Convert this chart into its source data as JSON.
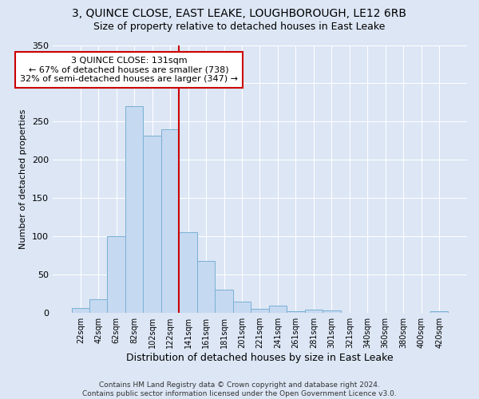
{
  "title": "3, QUINCE CLOSE, EAST LEAKE, LOUGHBOROUGH, LE12 6RB",
  "subtitle": "Size of property relative to detached houses in East Leake",
  "xlabel": "Distribution of detached houses by size in East Leake",
  "ylabel": "Number of detached properties",
  "footer": "Contains HM Land Registry data © Crown copyright and database right 2024.\nContains public sector information licensed under the Open Government Licence v3.0.",
  "bin_labels": [
    "22sqm",
    "42sqm",
    "62sqm",
    "82sqm",
    "102sqm",
    "122sqm",
    "141sqm",
    "161sqm",
    "181sqm",
    "201sqm",
    "221sqm",
    "241sqm",
    "261sqm",
    "281sqm",
    "301sqm",
    "321sqm",
    "340sqm",
    "360sqm",
    "380sqm",
    "400sqm",
    "420sqm"
  ],
  "bar_values": [
    6,
    18,
    100,
    270,
    232,
    240,
    106,
    68,
    30,
    15,
    5,
    10,
    2,
    4,
    3,
    0,
    0,
    0,
    0,
    0,
    2
  ],
  "bar_color": "#c5d9f1",
  "bar_edge_color": "#7ab0d4",
  "property_label": "3 QUINCE CLOSE: 131sqm",
  "pct_smaller": "67% of detached houses are smaller (738)",
  "pct_larger": "32% of semi-detached houses are larger (347)",
  "vline_color": "#cc0000",
  "vline_x_index": 5.5,
  "annotation_box_color": "#ffffff",
  "annotation_box_edge": "#cc0000",
  "ylim": [
    0,
    350
  ],
  "yticks": [
    0,
    50,
    100,
    150,
    200,
    250,
    300,
    350
  ],
  "background_color": "#dce6f5",
  "grid_color": "#ffffff",
  "title_fontsize": 10,
  "subtitle_fontsize": 9,
  "xlabel_fontsize": 9,
  "ylabel_fontsize": 8,
  "annotation_fontsize": 8
}
